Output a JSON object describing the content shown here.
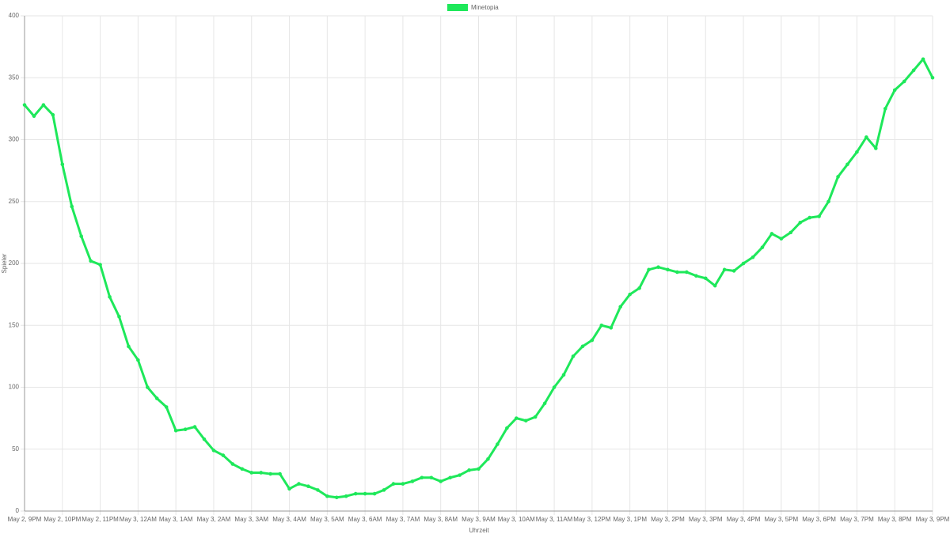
{
  "chart_data": {
    "type": "line",
    "x_label": "Uhrzeit",
    "y_label": "Spieler",
    "x": [
      0,
      0.25,
      0.5,
      0.75,
      1,
      1.25,
      1.5,
      1.75,
      2,
      2.25,
      2.5,
      2.75,
      3,
      3.25,
      3.5,
      3.75,
      4,
      4.25,
      4.5,
      4.75,
      5,
      5.25,
      5.5,
      5.75,
      6,
      6.25,
      6.5,
      6.75,
      7,
      7.25,
      7.5,
      7.75,
      8,
      8.25,
      8.5,
      8.75,
      9,
      9.25,
      9.5,
      9.75,
      10,
      10.25,
      10.5,
      10.75,
      11,
      11.25,
      11.5,
      11.75,
      12,
      12.25,
      12.5,
      12.75,
      13,
      13.25,
      13.5,
      13.75,
      14,
      14.25,
      14.5,
      14.75,
      15,
      15.25,
      15.5,
      15.75,
      16,
      16.25,
      16.5,
      16.75,
      17,
      17.25,
      17.5,
      17.75,
      18,
      18.25,
      18.5,
      18.75,
      19,
      19.25,
      19.5,
      19.75,
      20,
      20.25,
      20.5,
      20.75,
      21,
      21.25,
      21.5,
      21.75,
      22,
      22.25,
      22.5,
      22.75,
      23,
      23.25,
      23.5,
      23.75,
      24
    ],
    "series": [
      {
        "name": "Minetopia",
        "color": "#1ee85a",
        "values": [
          328,
          319,
          328,
          320,
          280,
          246,
          222,
          202,
          199,
          173,
          157,
          133,
          122,
          100,
          91,
          84,
          65,
          66,
          68,
          58,
          49,
          45,
          38,
          34,
          31,
          31,
          30,
          30,
          18,
          22,
          20,
          17,
          12,
          11,
          12,
          14,
          14,
          14,
          17,
          22,
          22,
          24,
          27,
          27,
          24,
          27,
          29,
          33,
          34,
          42,
          54,
          67,
          75,
          73,
          76,
          87,
          100,
          110,
          125,
          133,
          138,
          150,
          148,
          165,
          175,
          180,
          195,
          197,
          195,
          193,
          193,
          190,
          188,
          182,
          195,
          194,
          200,
          205,
          213,
          224,
          220,
          225,
          233,
          237,
          238,
          250,
          270,
          280,
          290,
          302,
          293,
          325,
          340,
          347,
          356,
          365,
          350
        ]
      }
    ],
    "xlim": [
      0,
      24
    ],
    "xticks": [
      {
        "value": 0,
        "label": "May 2, 9PM"
      },
      {
        "value": 1,
        "label": "May 2, 10PM"
      },
      {
        "value": 2,
        "label": "May 2, 11PM"
      },
      {
        "value": 3,
        "label": "May 3, 12AM"
      },
      {
        "value": 4,
        "label": "May 3, 1AM"
      },
      {
        "value": 5,
        "label": "May 3, 2AM"
      },
      {
        "value": 6,
        "label": "May 3, 3AM"
      },
      {
        "value": 7,
        "label": "May 3, 4AM"
      },
      {
        "value": 8,
        "label": "May 3, 5AM"
      },
      {
        "value": 9,
        "label": "May 3, 6AM"
      },
      {
        "value": 10,
        "label": "May 3, 7AM"
      },
      {
        "value": 11,
        "label": "May 3, 8AM"
      },
      {
        "value": 12,
        "label": "May 3, 9AM"
      },
      {
        "value": 13,
        "label": "May 3, 10AM"
      },
      {
        "value": 14,
        "label": "May 3, 11AM"
      },
      {
        "value": 15,
        "label": "May 3, 12PM"
      },
      {
        "value": 16,
        "label": "May 3, 1PM"
      },
      {
        "value": 17,
        "label": "May 3, 2PM"
      },
      {
        "value": 18,
        "label": "May 3, 3PM"
      },
      {
        "value": 19,
        "label": "May 3, 4PM"
      },
      {
        "value": 20,
        "label": "May 3, 5PM"
      },
      {
        "value": 21,
        "label": "May 3, 6PM"
      },
      {
        "value": 22,
        "label": "May 3, 7PM"
      },
      {
        "value": 23,
        "label": "May 3, 8PM"
      },
      {
        "value": 24,
        "label": "May 3, 9PM"
      }
    ],
    "ylim": [
      0,
      400
    ],
    "yticks": [
      0,
      50,
      100,
      150,
      200,
      250,
      300,
      350,
      400
    ],
    "grid": true,
    "legend": "top"
  }
}
